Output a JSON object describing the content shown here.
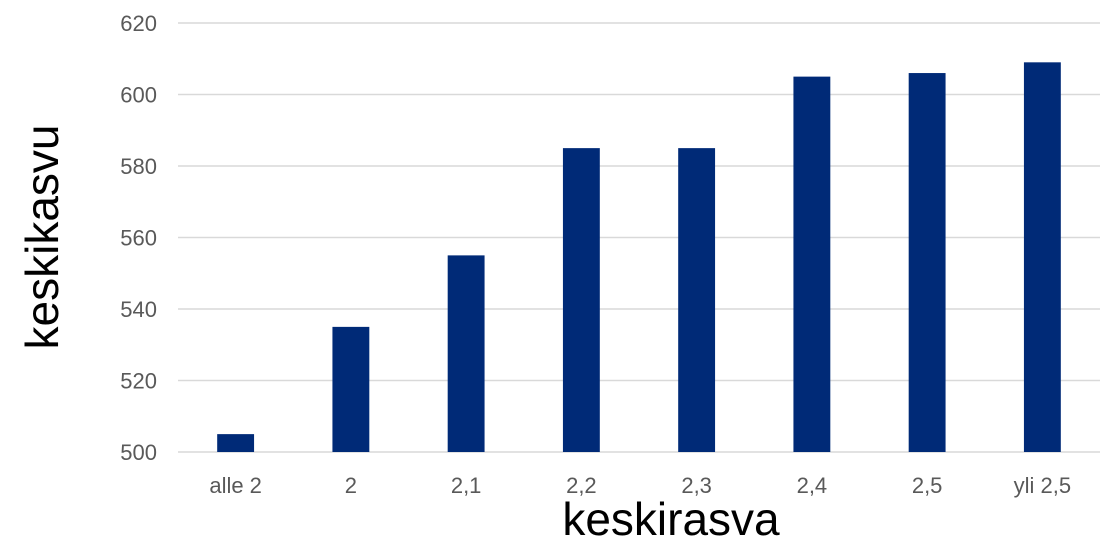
{
  "chart_data": {
    "type": "bar",
    "categories": [
      "alle 2",
      "2",
      "2,1",
      "2,2",
      "2,3",
      "2,4",
      "2,5",
      "yli 2,5"
    ],
    "values": [
      505,
      535,
      555,
      585,
      585,
      605,
      606,
      609
    ],
    "title": "",
    "xlabel": "keskirasva",
    "ylabel": "keskikasvu",
    "ylim": [
      500,
      620
    ],
    "yticks": [
      "500",
      "520",
      "540",
      "560",
      "580",
      "600",
      "620"
    ],
    "grid": true,
    "legend": "none",
    "colors": {
      "bar": "#002a77",
      "grid": "#d9d9d9",
      "tick_text": "#595959",
      "title_text": "#000000"
    }
  }
}
